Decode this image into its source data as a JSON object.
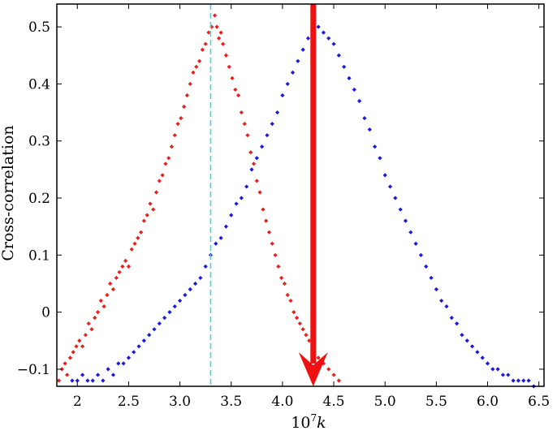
{
  "chart_data": {
    "type": "scatter",
    "title": "",
    "xlabel": "10",
    "xlabel_sup": "7",
    "xlabel_var": "k",
    "ylabel": "Cross-correlation",
    "xlim": [
      1.8,
      6.55
    ],
    "ylim": [
      -0.13,
      0.54
    ],
    "x_ticks": [
      2,
      2.5,
      3.0,
      3.5,
      4.0,
      4.5,
      5.0,
      5.5,
      6.0,
      6.5
    ],
    "x_tick_labels": [
      "2",
      "2.5",
      "3.0",
      "3.5",
      "4.0",
      "4.5",
      "5.0",
      "5.5",
      "6.0",
      "6.5"
    ],
    "y_ticks": [
      -0.1,
      0,
      0.1,
      0.2,
      0.3,
      0.4,
      0.5
    ],
    "y_tick_labels": [
      "−0.1",
      "0",
      "0.1",
      "0.2",
      "0.3",
      "0.4",
      "0.5"
    ],
    "grid": false,
    "legend": "none",
    "series": [
      {
        "color": "#e8201c",
        "points": [
          [
            1.82,
            -0.12
          ],
          [
            1.85,
            -0.1
          ],
          [
            1.88,
            -0.09
          ],
          [
            1.9,
            -0.11
          ],
          [
            1.93,
            -0.08
          ],
          [
            1.96,
            -0.07
          ],
          [
            1.99,
            -0.06
          ],
          [
            2.02,
            -0.05
          ],
          [
            2.05,
            -0.06
          ],
          [
            2.08,
            -0.04
          ],
          [
            2.11,
            -0.02
          ],
          [
            2.14,
            -0.03
          ],
          [
            2.17,
            -0.01
          ],
          [
            2.2,
            0.0
          ],
          [
            2.23,
            0.02
          ],
          [
            2.26,
            0.01
          ],
          [
            2.29,
            0.03
          ],
          [
            2.32,
            0.05
          ],
          [
            2.35,
            0.04
          ],
          [
            2.38,
            0.06
          ],
          [
            2.41,
            0.07
          ],
          [
            2.44,
            0.08
          ],
          [
            2.47,
            0.09
          ],
          [
            2.5,
            0.08
          ],
          [
            2.53,
            0.11
          ],
          [
            2.56,
            0.12
          ],
          [
            2.59,
            0.13
          ],
          [
            2.62,
            0.14
          ],
          [
            2.65,
            0.16
          ],
          [
            2.68,
            0.17
          ],
          [
            2.71,
            0.19
          ],
          [
            2.74,
            0.18
          ],
          [
            2.77,
            0.21
          ],
          [
            2.8,
            0.23
          ],
          [
            2.83,
            0.24
          ],
          [
            2.86,
            0.26
          ],
          [
            2.89,
            0.27
          ],
          [
            2.92,
            0.29
          ],
          [
            2.95,
            0.31
          ],
          [
            2.98,
            0.33
          ],
          [
            3.01,
            0.34
          ],
          [
            3.04,
            0.36
          ],
          [
            3.07,
            0.38
          ],
          [
            3.1,
            0.4
          ],
          [
            3.13,
            0.42
          ],
          [
            3.16,
            0.43
          ],
          [
            3.19,
            0.44
          ],
          [
            3.22,
            0.46
          ],
          [
            3.25,
            0.47
          ],
          [
            3.28,
            0.49
          ],
          [
            3.31,
            0.5
          ],
          [
            3.34,
            0.52
          ],
          [
            3.36,
            0.5
          ],
          [
            3.38,
            0.48
          ],
          [
            3.4,
            0.49
          ],
          [
            3.42,
            0.47
          ],
          [
            3.45,
            0.45
          ],
          [
            3.48,
            0.43
          ],
          [
            3.51,
            0.41
          ],
          [
            3.54,
            0.39
          ],
          [
            3.57,
            0.38
          ],
          [
            3.6,
            0.35
          ],
          [
            3.63,
            0.33
          ],
          [
            3.66,
            0.31
          ],
          [
            3.69,
            0.28
          ],
          [
            3.72,
            0.26
          ],
          [
            3.75,
            0.23
          ],
          [
            3.78,
            0.21
          ],
          [
            3.81,
            0.18
          ],
          [
            3.84,
            0.16
          ],
          [
            3.87,
            0.14
          ],
          [
            3.9,
            0.12
          ],
          [
            3.93,
            0.1
          ],
          [
            3.96,
            0.08
          ],
          [
            3.99,
            0.06
          ],
          [
            4.02,
            0.05
          ],
          [
            4.05,
            0.03
          ],
          [
            4.08,
            0.02
          ],
          [
            4.11,
            0.0
          ],
          [
            4.14,
            -0.01
          ],
          [
            4.17,
            -0.02
          ],
          [
            4.2,
            -0.03
          ],
          [
            4.23,
            -0.04
          ],
          [
            4.26,
            -0.05
          ],
          [
            4.3,
            -0.06
          ],
          [
            4.35,
            -0.08
          ],
          [
            4.4,
            -0.09
          ],
          [
            4.45,
            -0.1
          ],
          [
            4.5,
            -0.11
          ],
          [
            4.55,
            -0.12
          ]
        ]
      },
      {
        "color": "#1a1adc",
        "points": [
          [
            1.95,
            -0.12
          ],
          [
            2.0,
            -0.12
          ],
          [
            2.05,
            -0.11
          ],
          [
            2.1,
            -0.12
          ],
          [
            2.15,
            -0.12
          ],
          [
            2.2,
            -0.11
          ],
          [
            2.25,
            -0.12
          ],
          [
            2.3,
            -0.1
          ],
          [
            2.35,
            -0.11
          ],
          [
            2.4,
            -0.09
          ],
          [
            2.45,
            -0.09
          ],
          [
            2.5,
            -0.08
          ],
          [
            2.55,
            -0.07
          ],
          [
            2.6,
            -0.06
          ],
          [
            2.65,
            -0.05
          ],
          [
            2.7,
            -0.04
          ],
          [
            2.75,
            -0.03
          ],
          [
            2.8,
            -0.02
          ],
          [
            2.85,
            -0.01
          ],
          [
            2.9,
            0.0
          ],
          [
            2.95,
            0.01
          ],
          [
            3.0,
            0.02
          ],
          [
            3.05,
            0.03
          ],
          [
            3.1,
            0.04
          ],
          [
            3.15,
            0.05
          ],
          [
            3.2,
            0.06
          ],
          [
            3.25,
            0.08
          ],
          [
            3.3,
            0.1
          ],
          [
            3.35,
            0.12
          ],
          [
            3.4,
            0.13
          ],
          [
            3.45,
            0.15
          ],
          [
            3.5,
            0.17
          ],
          [
            3.55,
            0.19
          ],
          [
            3.6,
            0.2
          ],
          [
            3.65,
            0.22
          ],
          [
            3.7,
            0.25
          ],
          [
            3.75,
            0.27
          ],
          [
            3.8,
            0.29
          ],
          [
            3.85,
            0.31
          ],
          [
            3.9,
            0.33
          ],
          [
            3.95,
            0.35
          ],
          [
            4.0,
            0.38
          ],
          [
            4.05,
            0.4
          ],
          [
            4.1,
            0.42
          ],
          [
            4.15,
            0.44
          ],
          [
            4.2,
            0.46
          ],
          [
            4.25,
            0.48
          ],
          [
            4.3,
            0.49
          ],
          [
            4.35,
            0.5
          ],
          [
            4.4,
            0.49
          ],
          [
            4.45,
            0.48
          ],
          [
            4.5,
            0.47
          ],
          [
            4.55,
            0.45
          ],
          [
            4.6,
            0.43
          ],
          [
            4.65,
            0.41
          ],
          [
            4.7,
            0.39
          ],
          [
            4.75,
            0.37
          ],
          [
            4.8,
            0.34
          ],
          [
            4.85,
            0.32
          ],
          [
            4.9,
            0.29
          ],
          [
            4.95,
            0.27
          ],
          [
            5.0,
            0.24
          ],
          [
            5.05,
            0.22
          ],
          [
            5.1,
            0.2
          ],
          [
            5.15,
            0.18
          ],
          [
            5.2,
            0.16
          ],
          [
            5.25,
            0.14
          ],
          [
            5.3,
            0.12
          ],
          [
            5.35,
            0.1
          ],
          [
            5.4,
            0.08
          ],
          [
            5.45,
            0.06
          ],
          [
            5.5,
            0.04
          ],
          [
            5.55,
            0.02
          ],
          [
            5.6,
            0.01
          ],
          [
            5.65,
            -0.01
          ],
          [
            5.7,
            -0.02
          ],
          [
            5.75,
            -0.04
          ],
          [
            5.8,
            -0.05
          ],
          [
            5.85,
            -0.06
          ],
          [
            5.9,
            -0.07
          ],
          [
            5.95,
            -0.08
          ],
          [
            6.0,
            -0.09
          ],
          [
            6.05,
            -0.1
          ],
          [
            6.1,
            -0.1
          ],
          [
            6.15,
            -0.11
          ],
          [
            6.2,
            -0.11
          ],
          [
            6.25,
            -0.12
          ],
          [
            6.3,
            -0.12
          ],
          [
            6.35,
            -0.12
          ],
          [
            6.4,
            -0.12
          ],
          [
            6.45,
            -0.13
          ]
        ]
      }
    ],
    "reference_line": {
      "x": 3.3,
      "color": "#3fd6e0",
      "style": "dashed"
    },
    "arrow": {
      "x": 4.3,
      "y_start": 0.54,
      "y_end": -0.13,
      "color": "#ee1111"
    }
  }
}
